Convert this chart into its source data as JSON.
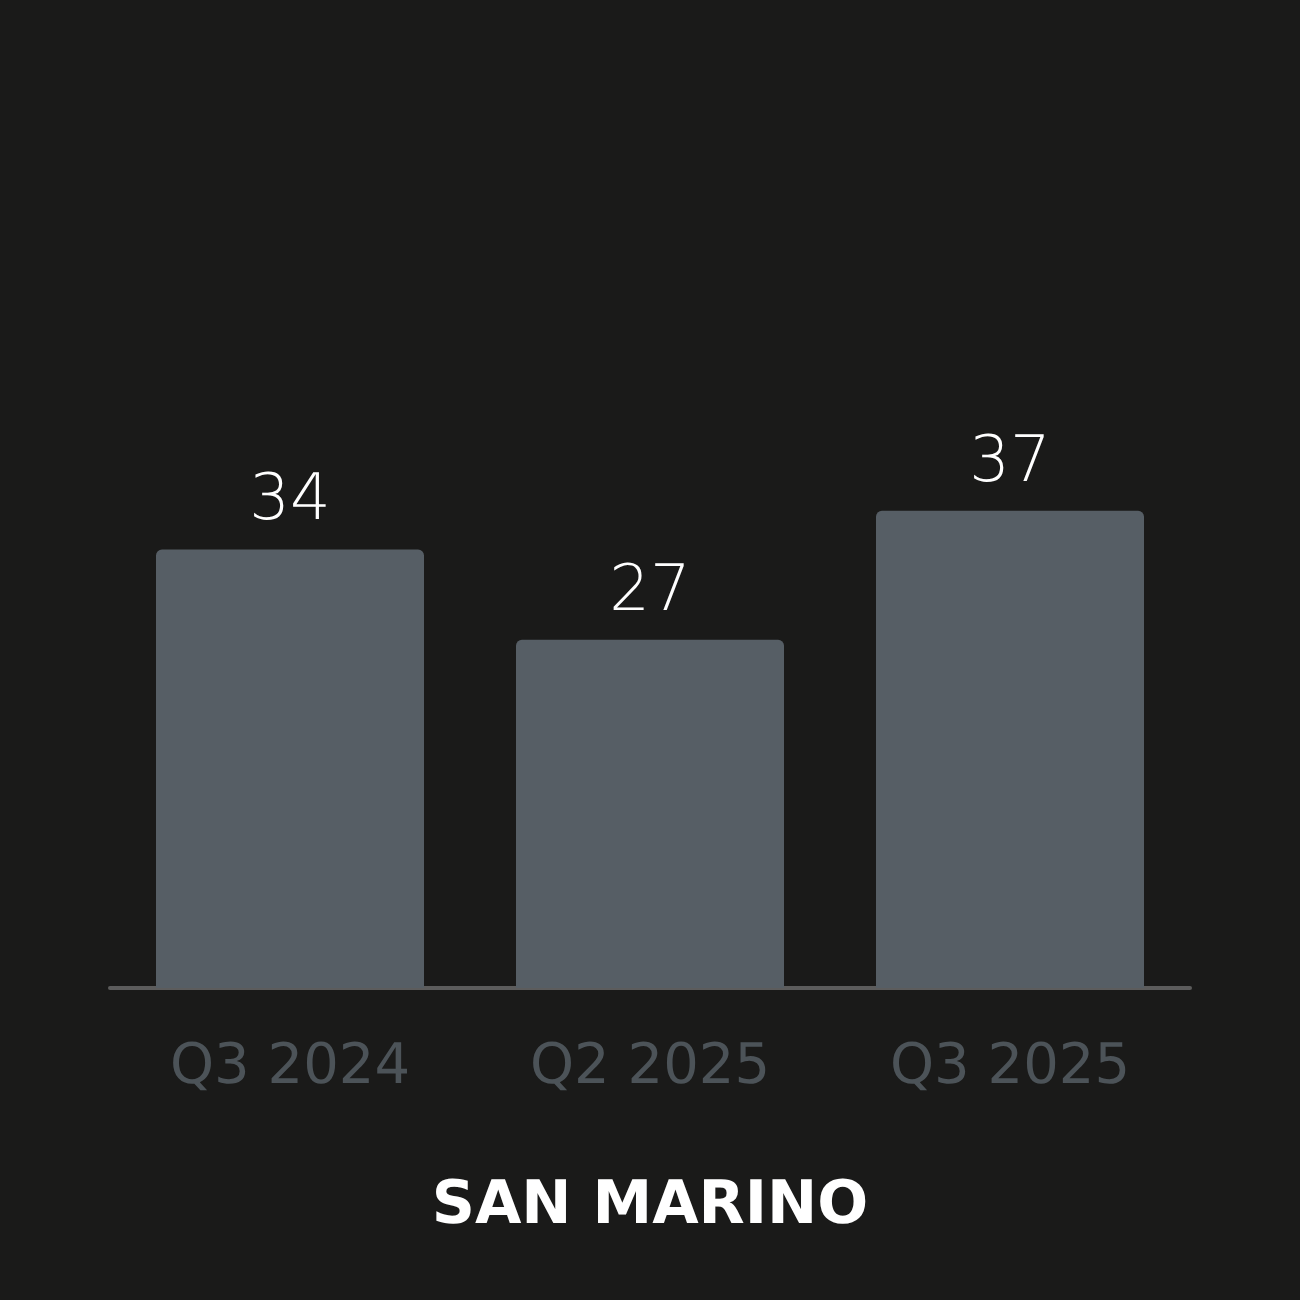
{
  "chart_data": {
    "type": "bar",
    "title": "SAN MARINO",
    "categories": [
      "Q3 2024",
      "Q2 2025",
      "Q3 2025"
    ],
    "values": [
      34,
      27,
      37
    ],
    "color": "#565e65",
    "data_labels": true
  }
}
